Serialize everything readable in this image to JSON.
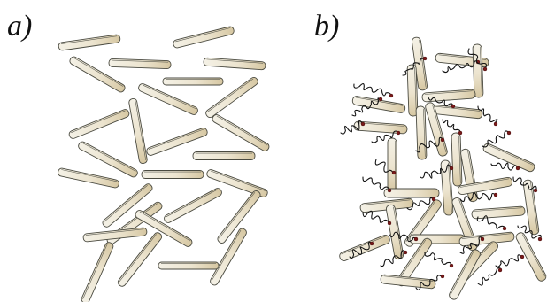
{
  "panels": [
    {
      "id": "a",
      "label": "a)"
    },
    {
      "id": "b",
      "label": "b)"
    }
  ],
  "colors": {
    "platelet_light": "#f3efe2",
    "platelet_dark": "#d8c9a6",
    "outline": "#4a4a40",
    "polymer_chain": "#111111",
    "anchor_point": "#7a1a1a"
  }
}
